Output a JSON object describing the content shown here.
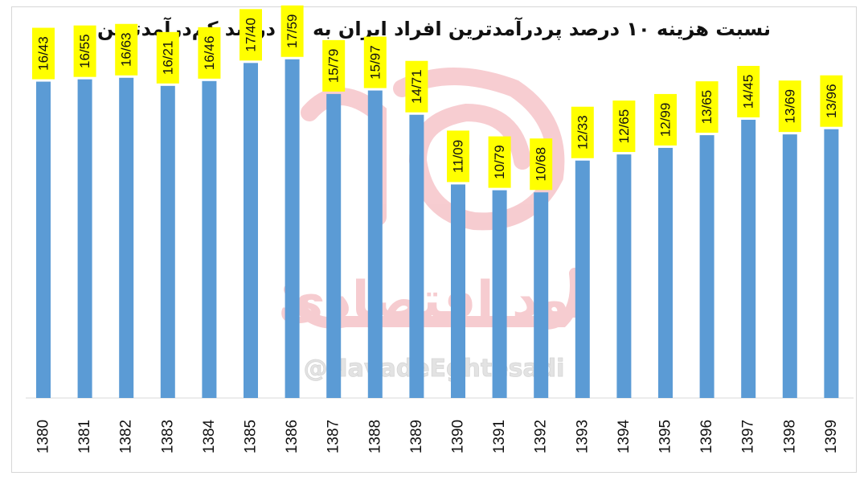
{
  "chart_data": {
    "type": "bar",
    "title": "نسبت هزینه ۱۰ درصد پردرآمدترین افراد ایران به ۱۰ درصد کم‌درآمدترین",
    "categories": [
      "1380",
      "1381",
      "1382",
      "1383",
      "1384",
      "1385",
      "1386",
      "1387",
      "1388",
      "1389",
      "1390",
      "1391",
      "1392",
      "1393",
      "1394",
      "1395",
      "1396",
      "1397",
      "1398",
      "1399"
    ],
    "values": [
      16.43,
      16.55,
      16.63,
      16.21,
      16.46,
      17.4,
      17.59,
      15.79,
      15.97,
      14.71,
      11.09,
      10.79,
      10.68,
      12.33,
      12.65,
      12.99,
      13.65,
      14.45,
      13.69,
      13.96
    ],
    "data_labels": [
      "16/43",
      "16/55",
      "16/63",
      "16/21",
      "16/46",
      "17/40",
      "17/59",
      "15/79",
      "15/97",
      "14/71",
      "11/09",
      "10/79",
      "10/68",
      "12/33",
      "12/65",
      "12/99",
      "13/65",
      "14/45",
      "13/69",
      "13/96"
    ],
    "xlabel": "",
    "ylabel": "",
    "ylim": [
      0,
      19
    ],
    "grid": false,
    "legend": "none",
    "bar_color": "#5B9BD5",
    "label_bg_color": "#FFFF00"
  },
  "watermark": {
    "text": "@NavadeEghtesadi",
    "logo_text": "نود اقتصادی",
    "logo_color": "#E8707A"
  }
}
